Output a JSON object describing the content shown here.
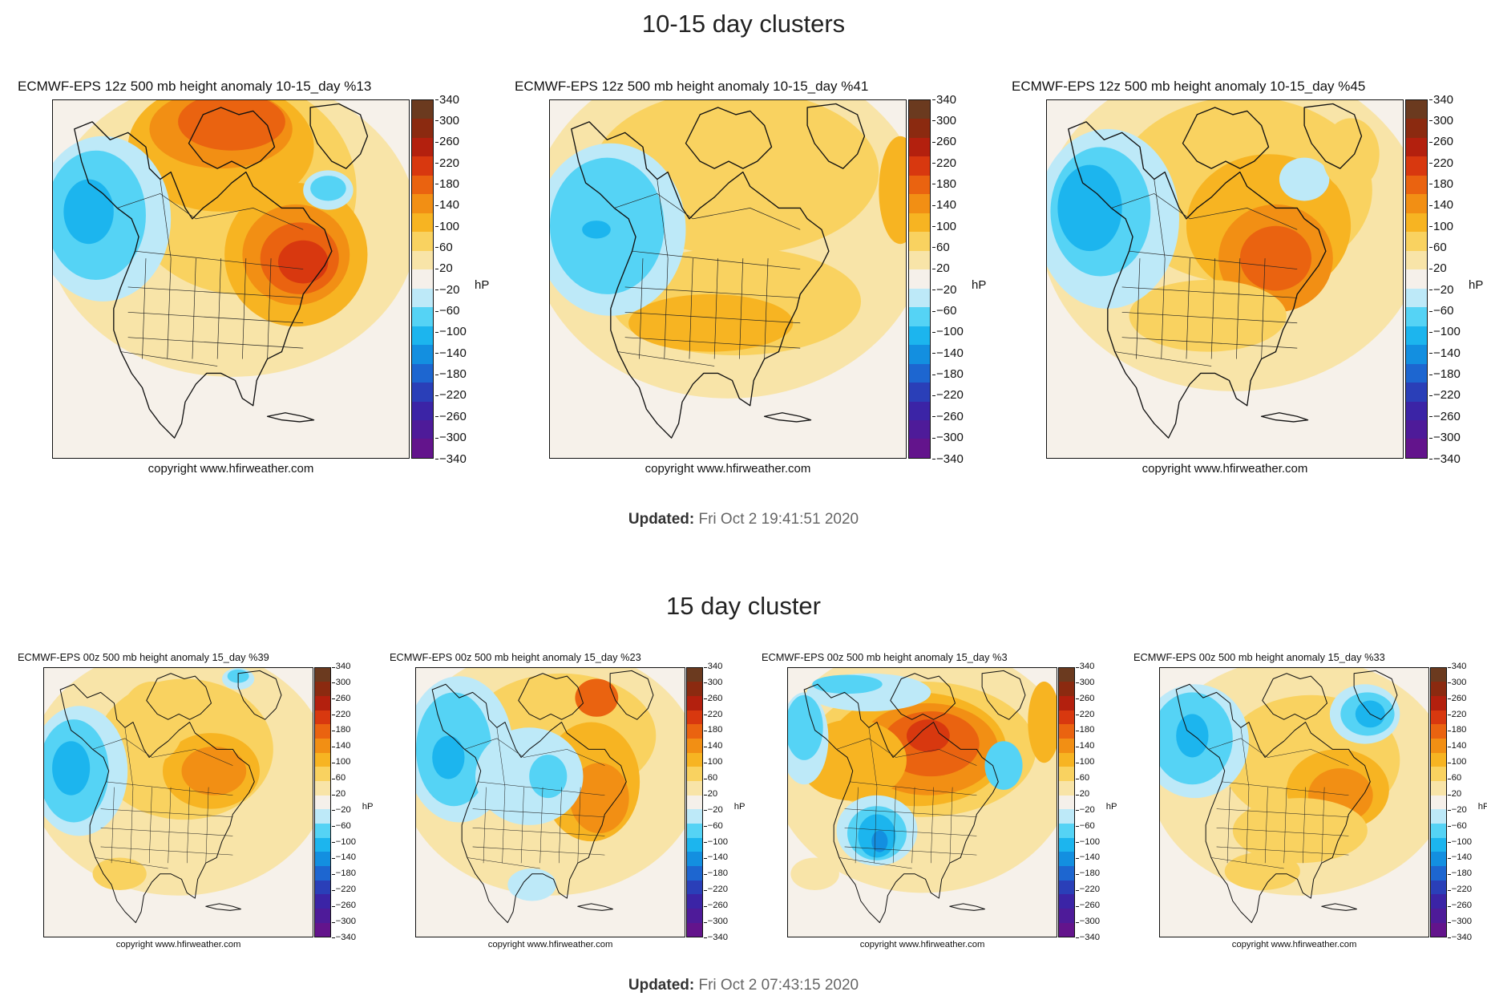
{
  "sections": [
    {
      "title": "10-15 day clusters",
      "updated_label": "Updated:",
      "updated_value": "Fri Oct 2 19:41:51 2020",
      "panels": [
        {
          "title": "ECMWF-EPS 12z 500 mb height anomaly 10-15_day %13",
          "copyright": "copyright www.hfirweather.com"
        },
        {
          "title": "ECMWF-EPS 12z 500 mb height anomaly 10-15_day %41",
          "copyright": "copyright www.hfirweather.com"
        },
        {
          "title": "ECMWF-EPS 12z 500 mb height anomaly 10-15_day %45",
          "copyright": "copyright www.hfirweather.com"
        }
      ]
    },
    {
      "title": "15 day cluster",
      "updated_label": "Updated:",
      "updated_value": "Fri Oct 2 07:43:15 2020",
      "panels": [
        {
          "title": "ECMWF-EPS 00z 500 mb height anomaly 15_day %39",
          "copyright": "copyright www.hfirweather.com"
        },
        {
          "title": "ECMWF-EPS 00z 500 mb height anomaly 15_day %23",
          "copyright": "copyright www.hfirweather.com"
        },
        {
          "title": "ECMWF-EPS 00z 500 mb height anomaly 15_day %3",
          "copyright": "copyright www.hfirweather.com"
        },
        {
          "title": "ECMWF-EPS 00z 500 mb height anomaly 15_day %33",
          "copyright": "copyright www.hfirweather.com"
        }
      ]
    }
  ],
  "colorbar": {
    "unit": "hP",
    "ticks": [
      "340",
      "300",
      "260",
      "220",
      "180",
      "140",
      "100",
      "60",
      "20",
      "−20",
      "−60",
      "−100",
      "−140",
      "−180",
      "−220",
      "−260",
      "−300",
      "−340"
    ],
    "colors": [
      "#6b3a1f",
      "#8b2a10",
      "#b3200e",
      "#d8380f",
      "#ea6310",
      "#f28f14",
      "#f7b422",
      "#f9d260",
      "#f8e4a8",
      "#f5f0ea",
      "#bde9f8",
      "#55d3f5",
      "#1cb5ee",
      "#138fe0",
      "#1d66d0",
      "#2a3fb8",
      "#3b24a6",
      "#4e1b99",
      "#63148c"
    ]
  }
}
